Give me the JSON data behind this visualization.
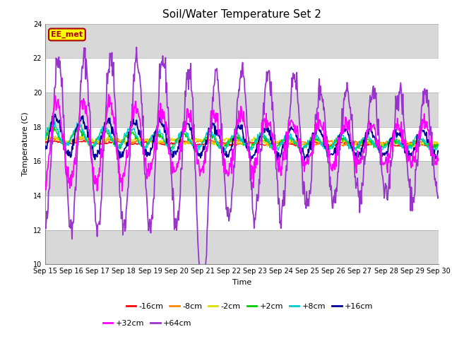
{
  "title": "Soil/Water Temperature Set 2",
  "xlabel": "Time",
  "ylabel": "Temperature (C)",
  "ylim": [
    10,
    24
  ],
  "yticks": [
    10,
    12,
    14,
    16,
    18,
    20,
    22,
    24
  ],
  "xtick_labels": [
    "Sep 15",
    "Sep 16",
    "Sep 17",
    "Sep 18",
    "Sep 19",
    "Sep 20",
    "Sep 21",
    "Sep 22",
    "Sep 23",
    "Sep 24",
    "Sep 25",
    "Sep 26",
    "Sep 27",
    "Sep 28",
    "Sep 29",
    "Sep 30"
  ],
  "series": {
    "-16cm": {
      "color": "#ff0000",
      "linewidth": 1.0
    },
    "-8cm": {
      "color": "#ff8800",
      "linewidth": 1.0
    },
    "-2cm": {
      "color": "#dddd00",
      "linewidth": 1.0
    },
    "+2cm": {
      "color": "#00cc00",
      "linewidth": 1.0
    },
    "+8cm": {
      "color": "#00cccc",
      "linewidth": 1.0
    },
    "+16cm": {
      "color": "#000099",
      "linewidth": 1.3
    },
    "+32cm": {
      "color": "#ff00ff",
      "linewidth": 1.3
    },
    "+64cm": {
      "color": "#9933cc",
      "linewidth": 1.3
    }
  },
  "bg_white": "#ffffff",
  "bg_gray": "#d8d8d8",
  "annotation_box": {
    "text": "EE_met",
    "facecolor": "#ffff00",
    "edgecolor": "#aa0000",
    "textcolor": "#aa0000"
  },
  "title_fontsize": 11,
  "axis_fontsize": 8,
  "tick_fontsize": 7,
  "legend_fontsize": 8
}
